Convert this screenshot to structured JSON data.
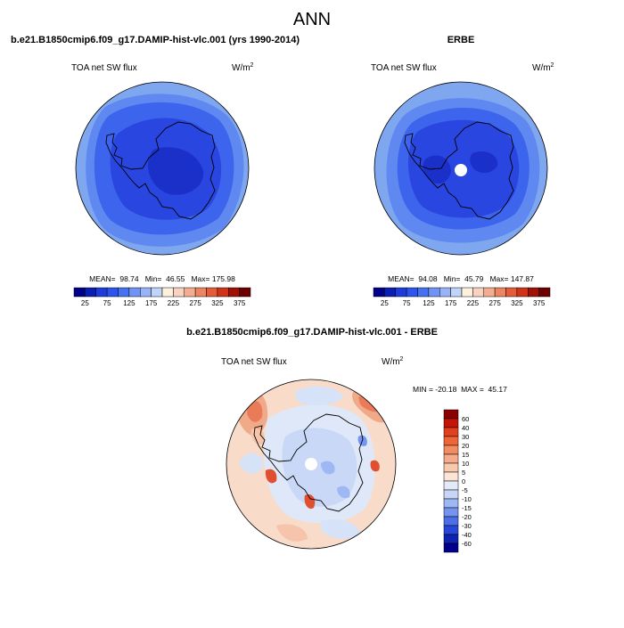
{
  "page": {
    "title": "ANN"
  },
  "colors": {
    "ocean_ring_light": "#7fa7f0",
    "ocean_ring_mid": "#5f88f0",
    "blue_main": "#3c64ec",
    "blue_dark": "#2946e0",
    "blue_darkest": "#1a30c8",
    "diff_light_blue": "#d7e3f8",
    "diff_pale": "#e6ecf8",
    "diff_light_orange": "#f5d2c0",
    "diff_orange": "#f0aa8a",
    "diff_red": "#e0502a",
    "polar_hole": "#ffffff"
  },
  "panels": [
    {
      "id": "model",
      "header": "b.e21.B1850cmip6.f09_g17.DAMIP-hist-vlc.001 (yrs 1990-2014)",
      "variable": "TOA net SW flux",
      "units_base": "W/m",
      "units_exp": "2",
      "stats": "MEAN=  98.74   Min=  46.55   Max= 175.98"
    },
    {
      "id": "obs",
      "header": "ERBE",
      "variable": "TOA net SW flux",
      "units_base": "W/m",
      "units_exp": "2",
      "stats": "MEAN=  94.08   Min=  45.79   Max= 147.87"
    },
    {
      "id": "diff",
      "header": "b.e21.B1850cmip6.f09_g17.DAMIP-hist-vlc.001 - ERBE",
      "variable": "TOA net SW flux",
      "units_base": "W/m",
      "units_exp": "2",
      "stats": "MIN = -20.18  MAX =  45.17"
    }
  ],
  "colorbar_horizontal": {
    "colors": [
      "#00008b",
      "#0a1eb4",
      "#1e3cdc",
      "#2d55ee",
      "#4671f4",
      "#6f93f6",
      "#98b4f8",
      "#c3d4fa",
      "#fdf0dc",
      "#f9d3bf",
      "#f4ad91",
      "#ee8560",
      "#e65b38",
      "#d23218",
      "#a01004",
      "#6e0000"
    ],
    "tick_labels": [
      "25",
      "75",
      "125",
      "175",
      "225",
      "275",
      "325",
      "375"
    ]
  },
  "colorbar_vertical": {
    "colors": [
      "#8b0000",
      "#c41508",
      "#e0401e",
      "#ef6538",
      "#f28d62",
      "#f6ab8b",
      "#f9c9ae",
      "#fde4d4",
      "#e2eaf8",
      "#c7d6f6",
      "#9db8f3",
      "#7394ef",
      "#4a6fe8",
      "#2747d8",
      "#0f22b0",
      "#00008b"
    ],
    "tick_labels": [
      "60",
      "40",
      "30",
      "20",
      "15",
      "10",
      "5",
      "0",
      "-5",
      "-10",
      "-15",
      "-20",
      "-30",
      "-40",
      "-60"
    ]
  }
}
